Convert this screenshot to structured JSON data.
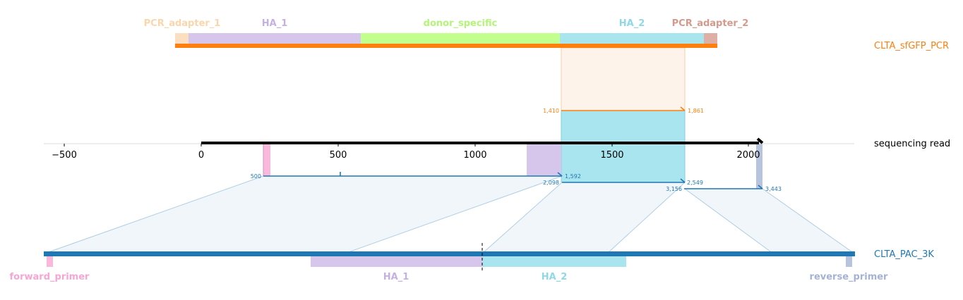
{
  "colors": {
    "pcr_adapter_1": "#fcdfc0",
    "ha1": "#d6c6ec",
    "donor_specific": "#c3ff8c",
    "ha2": "#a9e5ef",
    "pcr_adapter_2": "#deafa4",
    "forward_primer": "#fcb8dc",
    "reverse_primer": "#b8c4de",
    "orange": "#ff7f0e",
    "blue": "#1f77b4",
    "black": "#000000"
  },
  "top_features": [
    {
      "key": "pcr_adapter_1",
      "label": "PCR_adapter_1",
      "label_color": "#f9d6ac"
    },
    {
      "key": "ha1",
      "label": "HA_1",
      "label_color": "#c5b0e3"
    },
    {
      "key": "donor_specific",
      "label": "donor_specific",
      "label_color": "#b4f579"
    },
    {
      "key": "ha2",
      "label": "HA_2",
      "label_color": "#8fd8e8"
    },
    {
      "key": "pcr_adapter_2",
      "label": "PCR_adapter_2",
      "label_color": "#d49a8c"
    }
  ],
  "bottom_features": [
    {
      "key": "forward_primer",
      "label": "forward_primer",
      "label_color": "#f7a6d4"
    },
    {
      "key": "ha1",
      "label": "HA_1",
      "label_color": "#c5b0e3"
    },
    {
      "key": "ha2",
      "label": "HA_2",
      "label_color": "#8fd8e8"
    },
    {
      "key": "reverse_primer",
      "label": "reverse_primer",
      "label_color": "#a4b2d4"
    }
  ],
  "tracks": {
    "top": "CLTA_sfGFP_PCR",
    "read": "sequencing read",
    "bottom": "CLTA_PAC_3K"
  },
  "axis": {
    "ticks": [
      "−500",
      "0",
      "500",
      "1000",
      "1500",
      "2000"
    ]
  },
  "alignment_labels": {
    "top_start": "1,410",
    "top_end": "1,861",
    "seg1_start": "500",
    "seg1_end": "1,592",
    "seg2_start": "2,098",
    "seg2_end": "2,549",
    "seg3_start": "3,156",
    "seg3_end": "3,443"
  }
}
